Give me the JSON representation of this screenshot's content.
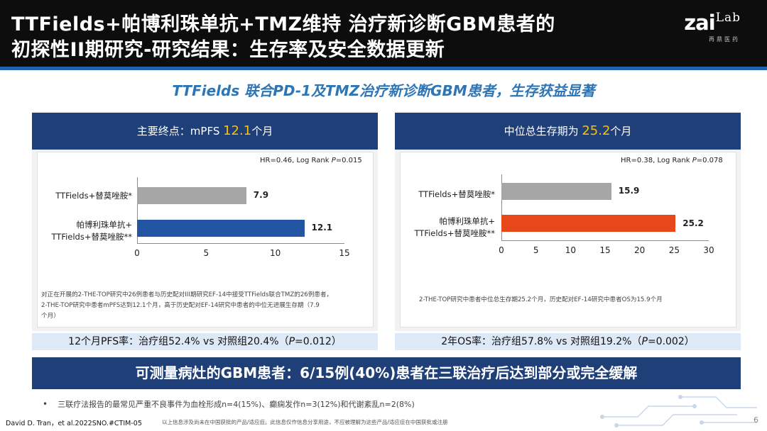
{
  "header": {
    "title_line1": "TTFields+帕博利珠单抗+TMZ维持 治疗新诊断GBM患者的",
    "title_line2": "初探性II期研究-研究结果：生存率及安全数据更新",
    "logo_main": "zai",
    "logo_lab": "Lab",
    "logo_sub": "再鼎医药"
  },
  "subtitle": "TTFields 联合PD-1及TMZ治疗新诊断GBM患者，生存获益显著",
  "left_panel": {
    "head_prefix": "主要终点：mPFS ",
    "head_value": "12.1",
    "head_suffix": "个月",
    "hr_prefix": "HR=0.46, Log Rank ",
    "hr_p": "P",
    "hr_suffix": "=0.015",
    "bar1_label": "TTFields+替莫唑胺*",
    "bar2_label_line1": "帕博利珠单抗+",
    "bar2_label_line2": "TTFields+替莫唑胺**",
    "note_line1": "对正在开展的2-THE-TOP研究中26例患者与历史配对III期研究EF-14中接受TTFields联合TMZ的26例患者，",
    "note_line2": "2-THE-TOP研究中患者mPFS达到12.1个月，高于历史配对EF-14研究中患者的中位无进展生存期（7.9",
    "note_line3": "个月）",
    "rate_prefix": "12个月PFS率：治疗组52.4% vs 对照组20.4%（",
    "rate_p": "P",
    "rate_suffix": "=0.012）"
  },
  "right_panel": {
    "head_prefix": "中位总生存期为 ",
    "head_value": "25.2",
    "head_suffix": "个月",
    "hr_prefix": "HR=0.38, Log Rank ",
    "hr_p": "P",
    "hr_suffix": "=0.078",
    "bar1_label": "TTFields+替莫唑胺*",
    "bar2_label_line1": "帕博利珠单抗+",
    "bar2_label_line2": "TTFields+替莫唑胺**",
    "note_line1": "2-THE-TOP研究中患者中位总生存期25.2个月，历史配对EF-14研究中患者OS为15.9个月",
    "rate_prefix": "2年OS率：治疗组57.8% vs 对照组19.2%（",
    "rate_p": "P",
    "rate_suffix": "=0.002）"
  },
  "banner": "可测量病灶的GBM患者：6/15例(40%)患者在三联治疗后达到部分或完全缓解",
  "bullet": "三联疗法报告的最常见严重不良事件为血栓形成n=4(15%)、癫痫发作n=3(12%)和代谢紊乱n=2(8%)",
  "footer": {
    "reference": "David D. Tran，et al.2022SNO.#CTIM-05",
    "disclaimer": "以上信息涉及尚未在中国获批的产品/适应症。此信息仅作信息分享用途，不应被理解为这些产品/适应症在中国获批或注册",
    "page": "6"
  },
  "colors": {
    "header_bg": "#0d0d0d",
    "panel_head_bg": "#1f3f78",
    "highlight": "#ffc000",
    "bar_gray": "#a6a6a6",
    "bar_blue": "#2256a5",
    "bar_orange": "#e8461b",
    "subtitle": "#2e75b6",
    "rate_bg": "#dde9f7"
  },
  "chart_data": [
    {
      "type": "bar",
      "orientation": "horizontal",
      "title": "主要终点：mPFS 12.1个月",
      "annotation": "HR=0.46, Log Rank P=0.015",
      "categories": [
        "TTFields+替莫唑胺*",
        "帕博利珠单抗+TTFields+替莫唑胺**"
      ],
      "values": [
        7.9,
        12.1
      ],
      "xlim": [
        0,
        15
      ],
      "ticks": [
        0,
        5,
        10,
        15
      ],
      "bar_colors": [
        "#a6a6a6",
        "#2256a5"
      ]
    },
    {
      "type": "bar",
      "orientation": "horizontal",
      "title": "中位总生存期为 25.2个月",
      "annotation": "HR=0.38, Log Rank P=0.078",
      "categories": [
        "TTFields+替莫唑胺*",
        "帕博利珠单抗+TTFields+替莫唑胺**"
      ],
      "values": [
        15.9,
        25.2
      ],
      "xlim": [
        0,
        30
      ],
      "ticks": [
        0,
        5,
        10,
        15,
        20,
        25,
        30
      ],
      "bar_colors": [
        "#a6a6a6",
        "#e8461b"
      ]
    }
  ]
}
